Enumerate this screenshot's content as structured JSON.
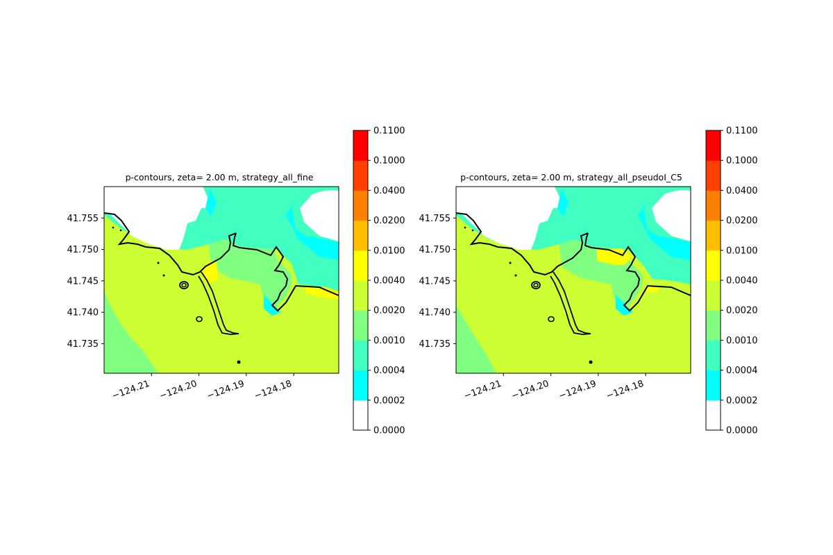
{
  "chart_data": [
    {
      "type": "heatmap",
      "title": "p-contours, zeta= 2.00 m, strategy_all_fine",
      "xlabel": "",
      "ylabel": "",
      "xlim": [
        -124.22,
        -124.1705
      ],
      "ylim": [
        41.7303,
        41.76
      ],
      "xticks": [
        -124.21,
        -124.2,
        -124.19,
        -124.18
      ],
      "xtick_labels": [
        "−124.21",
        "−124.20",
        "−124.19",
        "−124.18"
      ],
      "yticks": [
        41.735,
        41.74,
        41.745,
        41.75,
        41.755
      ],
      "ytick_labels": [
        "41.735",
        "41.740",
        "41.745",
        "41.750",
        "41.755"
      ],
      "colorbar": {
        "levels": [
          0.0,
          0.0002,
          0.0004,
          0.001,
          0.002,
          0.004,
          0.01,
          0.02,
          0.04,
          0.1,
          0.11
        ],
        "labels": [
          "0.0000",
          "0.0002",
          "0.0004",
          "0.0010",
          "0.0020",
          "0.0040",
          "0.0100",
          "0.0200",
          "0.0400",
          "0.1000",
          "0.1100"
        ],
        "colors": [
          "#ffffff",
          "#00ffff",
          "#40ffc0",
          "#80ff80",
          "#ccff33",
          "#ffff00",
          "#ffbf00",
          "#ff8000",
          "#ff4000",
          "#ff0000"
        ]
      }
    },
    {
      "type": "heatmap",
      "title": "p-contours, zeta= 2.00 m, strategy_all_pseudoI_C5",
      "xlabel": "",
      "ylabel": "",
      "xlim": [
        -124.22,
        -124.1705
      ],
      "ylim": [
        41.7303,
        41.76
      ],
      "xticks": [
        -124.21,
        -124.2,
        -124.19,
        -124.18
      ],
      "xtick_labels": [
        "−124.21",
        "−124.20",
        "−124.19",
        "−124.18"
      ],
      "yticks": [
        41.735,
        41.74,
        41.745,
        41.75,
        41.755
      ],
      "ytick_labels": [
        "41.735",
        "41.740",
        "41.745",
        "41.750",
        "41.755"
      ],
      "colorbar": {
        "levels": [
          0.0,
          0.0002,
          0.0004,
          0.001,
          0.002,
          0.004,
          0.01,
          0.02,
          0.04,
          0.1,
          0.11
        ],
        "labels": [
          "0.0000",
          "0.0002",
          "0.0004",
          "0.0010",
          "0.0020",
          "0.0040",
          "0.0100",
          "0.0200",
          "0.0400",
          "0.1000",
          "0.1100"
        ],
        "colors": [
          "#ffffff",
          "#00ffff",
          "#40ffc0",
          "#80ff80",
          "#ccff33",
          "#ffff00",
          "#ffbf00",
          "#ff8000",
          "#ff4000",
          "#ff0000"
        ]
      }
    }
  ]
}
